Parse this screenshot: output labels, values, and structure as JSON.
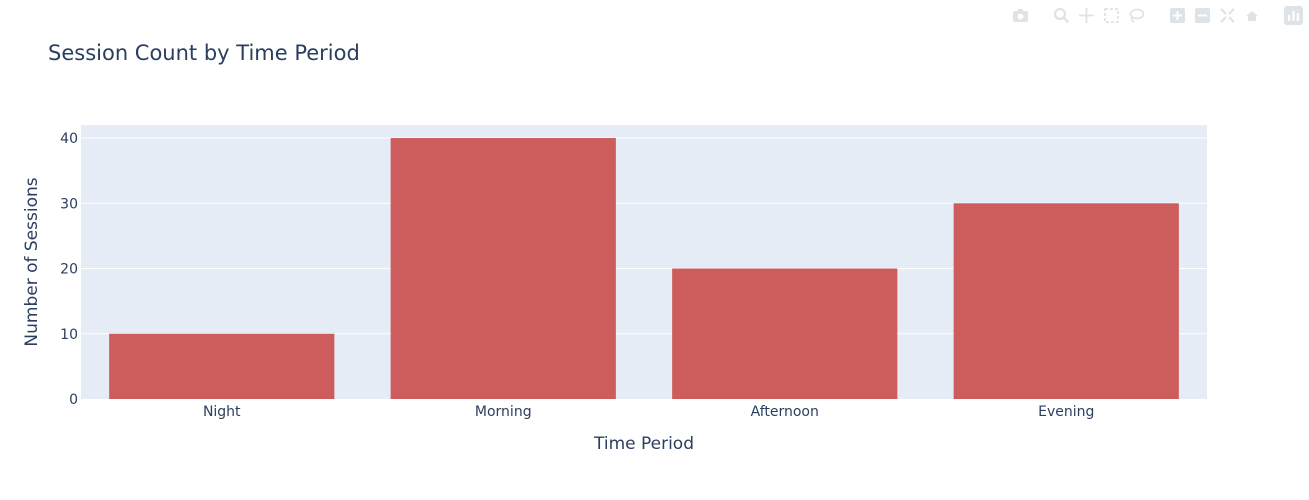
{
  "chart_data": {
    "type": "bar",
    "title": "Session Count by Time Period",
    "xlabel": "Time Period",
    "ylabel": "Number of Sessions",
    "categories": [
      "Night",
      "Morning",
      "Afternoon",
      "Evening"
    ],
    "values": [
      10,
      40,
      20,
      30
    ],
    "ylim": [
      0,
      42
    ],
    "yticks": [
      0,
      10,
      20,
      30,
      40
    ],
    "grid": true,
    "bar_color": "#cd5c5c",
    "plot_background": "#e5ecf6",
    "gridline_color": "#ffffff"
  },
  "modebar": {
    "icons": [
      "camera-icon",
      "zoom-icon",
      "pan-icon",
      "box-select-icon",
      "lasso-select-icon",
      "zoom-in-icon",
      "zoom-out-icon",
      "autoscale-icon",
      "reset-axes-icon",
      "plotly-logo-icon"
    ]
  }
}
